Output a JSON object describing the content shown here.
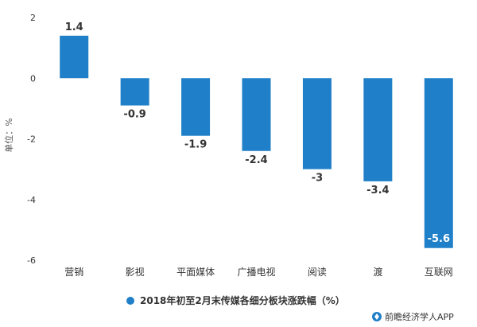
{
  "chart_data": {
    "type": "bar",
    "categories": [
      "营销",
      "影视",
      "平面媒体",
      "广播电视",
      "阅读",
      "渡",
      "互联网"
    ],
    "values": [
      1.4,
      -0.9,
      -1.9,
      -2.4,
      -3,
      -3.4,
      -5.6
    ],
    "value_labels": [
      "1.4",
      "-0.9",
      "-1.9",
      "-2.4",
      "-3",
      "-3.4",
      "-5.6"
    ],
    "ylabel": "单位：%",
    "ylim": [
      -6,
      2
    ],
    "yticks": [
      2,
      0,
      -2,
      -4,
      -6
    ],
    "ytick_labels": [
      "2",
      "0",
      "-2",
      "-4",
      "-6"
    ],
    "legend": "2018年初至2月末传媒各细分板块涨跌幅（%）",
    "legend_position": "bottom",
    "color": "#1f7fc8",
    "grid": false
  },
  "footer": {
    "text": "前瞻经济学人APP"
  }
}
